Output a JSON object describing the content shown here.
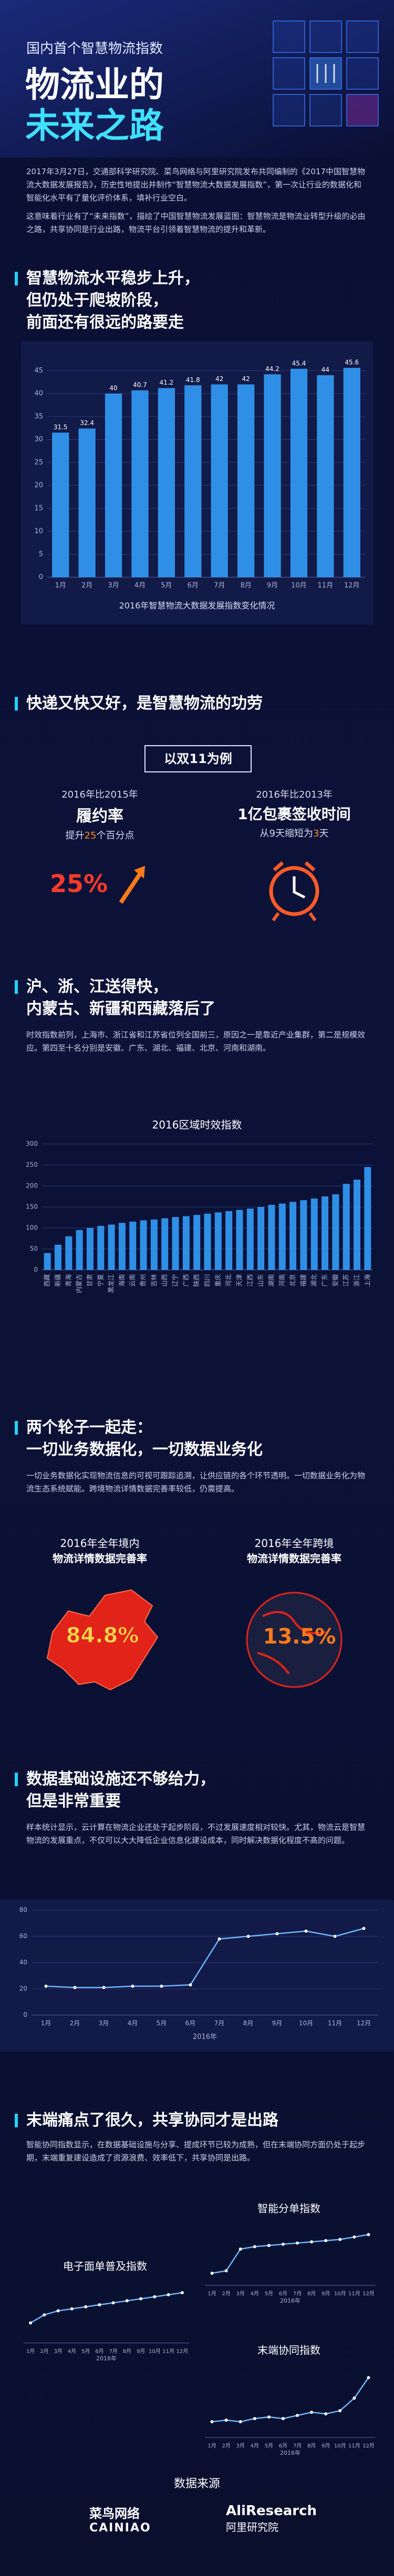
{
  "header": {
    "kicker": "国内首个智慧物流指数",
    "title_line1": "物流业的",
    "title_line2": "未来之路"
  },
  "intro": {
    "paragraphs": [
      "2017年3月27日，交通部科学研究院、菜鸟网络与阿里研究院发布共同编制的《2017中国智慧物流大数据发展报告》，历史性地提出并制作“智慧物流大数据发展指数”，第一次让行业的数据化和智能化水平有了量化评价体系，填补行业空白。",
      "这意味着行业有了“未来指数”，描绘了中国智慧物流发展蓝图：智慧物流是物流业转型升级的必由之路，共享协同是行业出路，物流平台引领着智慧物流的提升和革新。"
    ]
  },
  "sections": [
    {
      "heading": [
        "智慧物流水平稳步上升，",
        "但仍处于爬坡阶段，",
        "前面还有很远的路要走"
      ]
    },
    {
      "heading": [
        "快递又快又好，是智慧物流的功劳"
      ]
    },
    {
      "heading": [
        "沪、浙、江送得快，",
        "内蒙古、新疆和西藏落后了"
      ],
      "text": "时效指数前列，上海市、浙江省和江苏省位列全国前三，原因之一是靠近产业集群，第二是规模效应。第四至十名分别是安徽、广东、湖北、福建、北京、河南和湖南。"
    },
    {
      "heading": [
        "两个轮子一起走：",
        "一切业务数据化，一切数据业务化"
      ],
      "text": "一切业务数据化实现物流信息的可视可跟踪追溯，让供应链的各个环节透明。一切数据业务化为物流生态系统赋能。跨境物流详情数据完善率较低，仍需提高。"
    },
    {
      "heading": [
        "数据基础设施还不够给力，",
        "但是非常重要"
      ],
      "text": "样本统计显示，云计算在物流企业还处于起步阶段，不过发展速度相对较快。尤其，物流云是智慧物流的发展重点，不仅可以大大降低企业信息化建设成本，同时解决数据化程度不高的问题。"
    },
    {
      "heading": [
        "末端痛点了很久，共享协同才是出路"
      ],
      "text": "智能协同指数显示，在数据基础设施与分享、提成环节已较为成熟，但在末端协同方面仍处于起步期，末端重复建设造成了资源浪费、效率低下，共享协同是出路。"
    }
  ],
  "express": {
    "example": "以双11为例",
    "left": {
      "compare": "2016年比2015年",
      "metric": "履约率",
      "pre": "提升",
      "num": "25",
      "post": "个百分点",
      "badge": "25%"
    },
    "right": {
      "compare": "2016年比2013年",
      "metric": "1亿包裹签收时间",
      "pre": "从9天缩短为",
      "num": "3",
      "post": "天"
    }
  },
  "completeness": {
    "left": {
      "line1": "2016年全年境内",
      "line2": "物流详情数据完善率",
      "value": "84.8%"
    },
    "right": {
      "line1": "2016年全年跨境",
      "line2": "物流详情数据完善率",
      "value": "13.5%"
    }
  },
  "source": {
    "title": "数据来源",
    "logo1_cn": "菜鸟网络",
    "logo1_en": "CAINIAO",
    "logo2_en": "AliResearch",
    "logo2_cn": "阿里研究院"
  },
  "chart_data": [
    {
      "type": "bar",
      "title": "2016年智慧物流大数据发展指数变化情况",
      "categories": [
        "1月",
        "2月",
        "3月",
        "4月",
        "5月",
        "6月",
        "7月",
        "8月",
        "9月",
        "10月",
        "11月",
        "12月"
      ],
      "values": [
        31.5,
        32.4,
        40,
        40.7,
        41.2,
        41.8,
        42,
        42,
        44.2,
        45.4,
        44,
        45.6
      ],
      "color": "#2f8fe6",
      "ylim": [
        0,
        48
      ],
      "yticks": [
        0,
        5,
        10,
        15,
        20,
        25,
        30,
        35,
        40,
        45
      ],
      "grid": true
    },
    {
      "type": "bar",
      "title": "2016区域时效指数",
      "categories": [
        "西藏",
        "新疆",
        "青海",
        "内蒙古",
        "甘肃",
        "宁夏",
        "黑龙江",
        "海南",
        "云南",
        "贵州",
        "吉林",
        "山西",
        "辽宁",
        "广西",
        "陕西",
        "四川",
        "重庆",
        "河北",
        "天津",
        "江西",
        "山东",
        "湖南",
        "河南",
        "北京",
        "福建",
        "湖北",
        "广东",
        "安徽",
        "江苏",
        "浙江",
        "上海"
      ],
      "values": [
        40,
        60,
        80,
        95,
        100,
        105,
        108,
        112,
        115,
        118,
        120,
        123,
        126,
        128,
        131,
        134,
        137,
        140,
        143,
        146,
        150,
        155,
        158,
        162,
        166,
        170,
        175,
        180,
        205,
        215,
        245
      ],
      "color": "#2f8fe6",
      "ylim": [
        0,
        300
      ],
      "yticks": [
        0,
        50,
        100,
        150,
        200,
        250,
        300
      ],
      "grid": true
    },
    {
      "type": "line",
      "xlabel": "2016年",
      "categories": [
        "1月",
        "2月",
        "3月",
        "4月",
        "5月",
        "6月",
        "7月",
        "8月",
        "9月",
        "10月",
        "11月",
        "12月"
      ],
      "values": [
        22,
        21,
        21,
        22,
        22,
        23,
        58,
        60,
        62,
        64,
        60,
        66
      ],
      "color": "#6fb6ff",
      "ylim": [
        0,
        80
      ],
      "yticks": [
        0,
        20,
        40,
        60,
        80
      ],
      "grid": true
    },
    {
      "type": "line",
      "title": "智能分单指数",
      "xlabel": "2016年",
      "categories": [
        "1月",
        "2月",
        "3月",
        "4月",
        "5月",
        "6月",
        "7月",
        "8月",
        "9月",
        "10月",
        "11月",
        "12月"
      ],
      "values": [
        40,
        42,
        60,
        62,
        63,
        64,
        65,
        66,
        67,
        68,
        70,
        72
      ],
      "color": "#6fb6ff",
      "ylim": [
        30,
        80
      ]
    },
    {
      "type": "line",
      "title": "电子面单普及指数",
      "xlabel": "2016年",
      "categories": [
        "1月",
        "2月",
        "3月",
        "4月",
        "5月",
        "6月",
        "7月",
        "8月",
        "9月",
        "10月",
        "11月",
        "12月"
      ],
      "values": [
        50,
        54,
        56,
        57,
        58,
        59,
        60,
        61,
        62,
        63,
        64,
        65
      ],
      "color": "#6fb6ff",
      "ylim": [
        40,
        70
      ]
    },
    {
      "type": "line",
      "title": "末端协同指数",
      "xlabel": "2016年",
      "categories": [
        "1月",
        "2月",
        "3月",
        "4月",
        "5月",
        "6月",
        "7月",
        "8月",
        "9月",
        "10月",
        "11月",
        "12月"
      ],
      "values": [
        20,
        21,
        20,
        22,
        23,
        22,
        24,
        26,
        25,
        27,
        35,
        48
      ],
      "color": "#6fb6ff",
      "ylim": [
        10,
        55
      ]
    }
  ]
}
